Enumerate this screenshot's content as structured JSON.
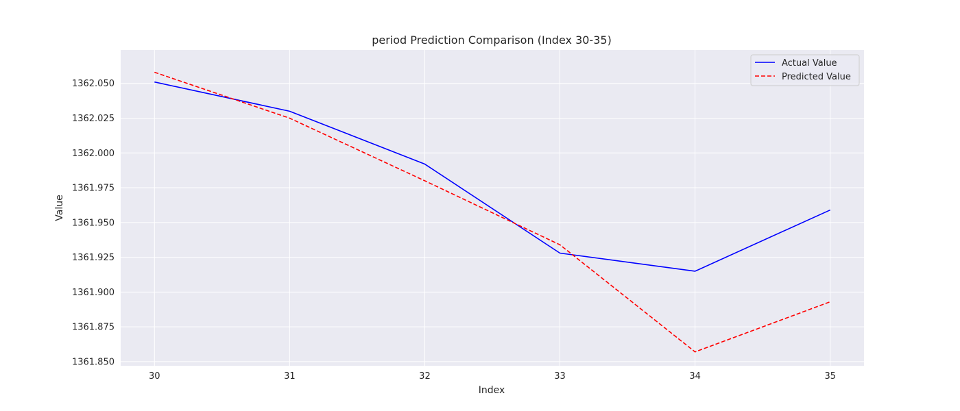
{
  "chart_data": {
    "type": "line",
    "title": "period Prediction Comparison (Index 30-35)",
    "xlabel": "Index",
    "ylabel": "Value",
    "x": [
      30,
      31,
      32,
      33,
      34,
      35
    ],
    "xticks": [
      "30",
      "31",
      "32",
      "33",
      "34",
      "35"
    ],
    "xlim": [
      29.75,
      35.25
    ],
    "ylim": [
      1361.847,
      1362.074
    ],
    "yticks": [
      "1361.850",
      "1361.875",
      "1361.900",
      "1361.925",
      "1361.950",
      "1361.975",
      "1362.000",
      "1362.025",
      "1362.050"
    ],
    "ytick_values": [
      1361.85,
      1361.875,
      1361.9,
      1361.925,
      1361.95,
      1361.975,
      1362.0,
      1362.025,
      1362.05
    ],
    "grid": true,
    "legend_position": "top-right",
    "series": [
      {
        "name": "Actual Value",
        "color": "#0000ff",
        "style": "solid",
        "values": [
          1362.051,
          1362.03,
          1361.992,
          1361.928,
          1361.915,
          1361.959
        ]
      },
      {
        "name": "Predicted Value",
        "color": "#ff0000",
        "style": "dashed",
        "values": [
          1362.058,
          1362.025,
          1361.98,
          1361.934,
          1361.857,
          1361.893
        ]
      }
    ],
    "plot_background": "#eaeaf2",
    "grid_color": "#ffffff"
  }
}
